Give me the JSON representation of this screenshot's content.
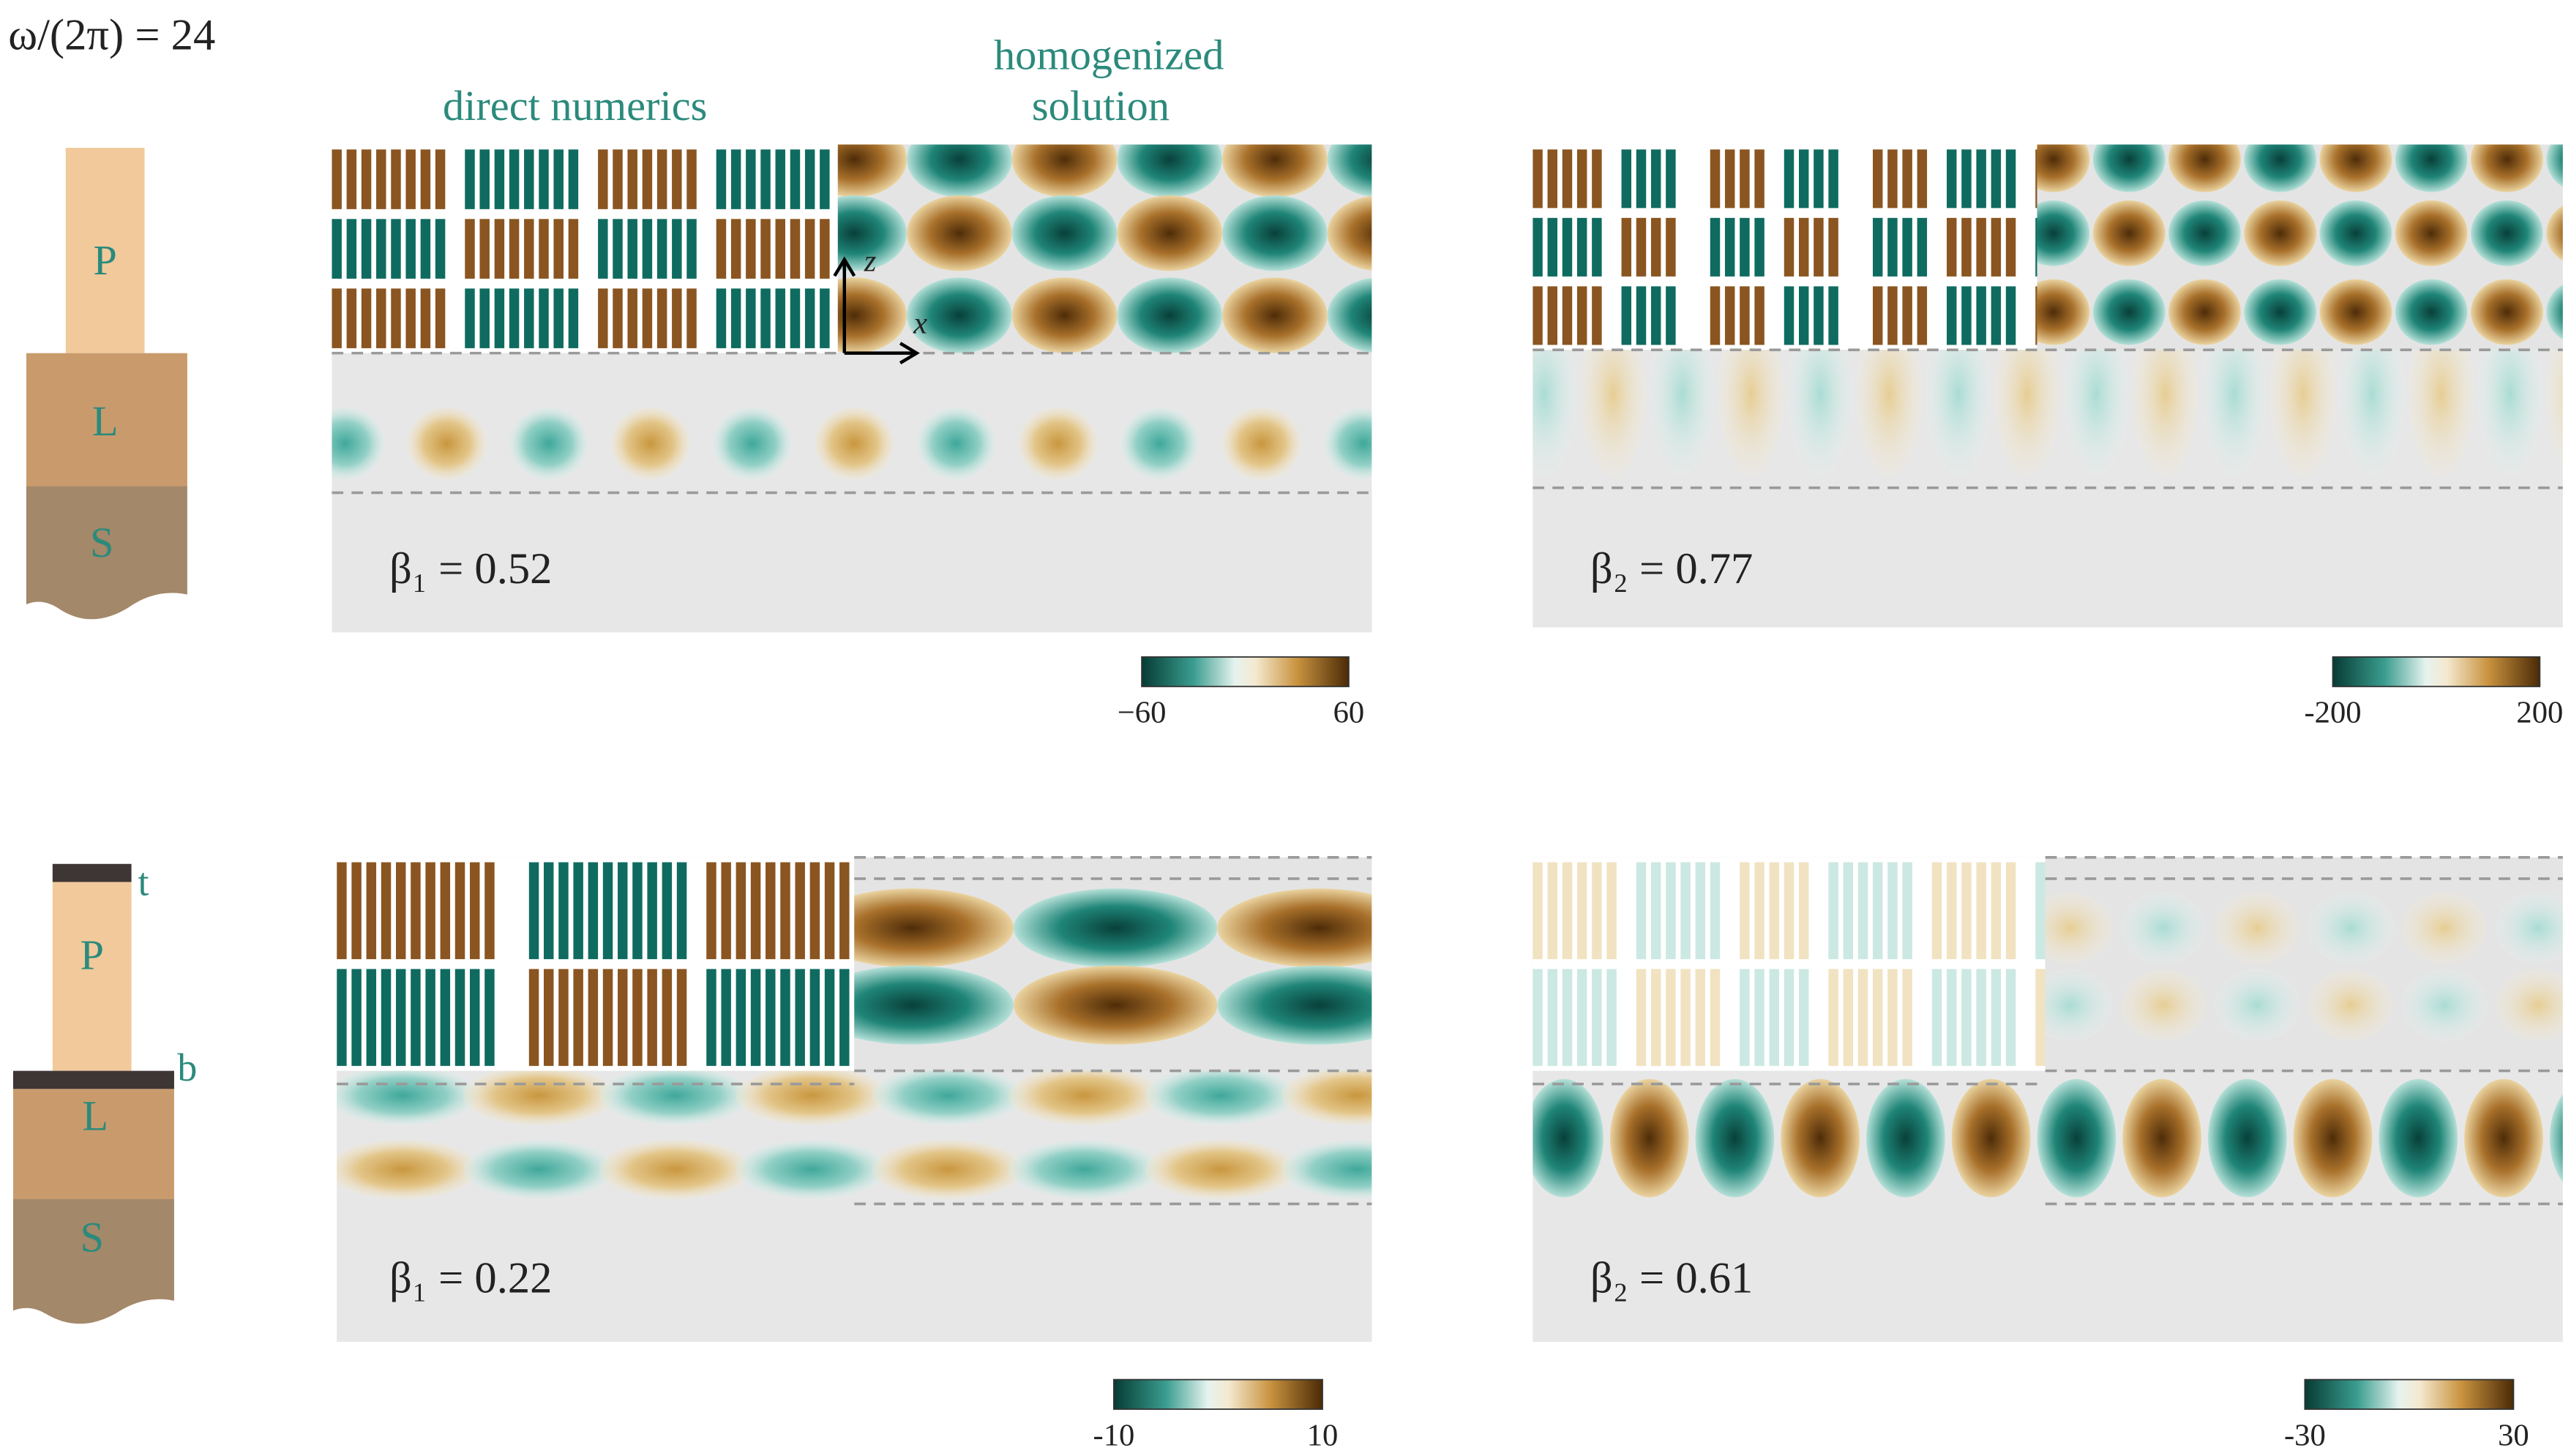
{
  "figure": {
    "frequency_label": "ω/(2π) = 24",
    "column_titles": {
      "left": "direct numerics",
      "right": [
        "homogenized",
        "solution"
      ]
    },
    "axes": {
      "z": "z",
      "x": "x"
    },
    "sketch_top": {
      "labels": [
        "P",
        "L",
        "S"
      ]
    },
    "sketch_bottom": {
      "labels": [
        "P",
        "L",
        "S"
      ],
      "bars": [
        "t",
        "b"
      ]
    },
    "panels": [
      {
        "label": "β₁ = 0.52",
        "colorbar": [
          "−60",
          "60"
        ]
      },
      {
        "label": "β₂ = 0.77",
        "colorbar": [
          "-200",
          "200"
        ]
      },
      {
        "label": "β₁ = 0.22",
        "colorbar": [
          "-10",
          "10"
        ]
      },
      {
        "label": "β₂ = 0.61",
        "colorbar": [
          "-30",
          "30"
        ]
      }
    ]
  }
}
